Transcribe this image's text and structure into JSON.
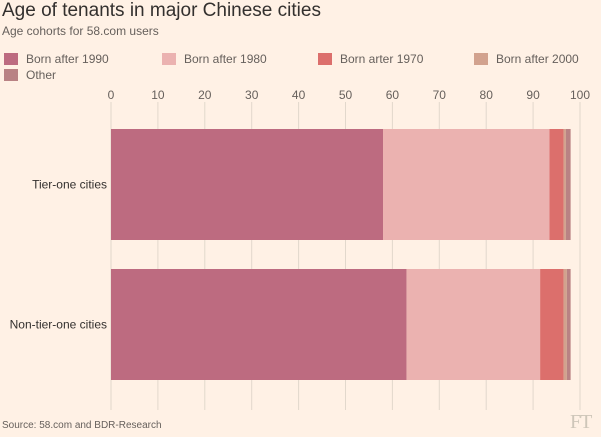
{
  "title": "Age of tenants in major Chinese cities",
  "subtitle": "Age cohorts for 58.com users",
  "source": "Source: 58.com and BDR-Research",
  "logo": "FT",
  "colors": {
    "background": "#fff1e5",
    "gridline": "#e2d8cc",
    "Born after 1990": "#bd6b80",
    "Born after 1980": "#ebb2b0",
    "Born arter 1970": "#dc6f6c",
    "Born after 2000": "#d2a28e",
    "Other": "#b98284"
  },
  "chart_data": {
    "type": "bar",
    "orientation": "horizontal",
    "stacked": true,
    "categories": [
      "Tier-one cities",
      "Non-tier-one cities"
    ],
    "series": [
      {
        "name": "Born after 1990",
        "values": [
          58,
          63
        ]
      },
      {
        "name": "Born after 1980",
        "values": [
          35.5,
          28.5
        ]
      },
      {
        "name": "Born arter 1970",
        "values": [
          3,
          5
        ]
      },
      {
        "name": "Born after 2000",
        "values": [
          0.5,
          0.7
        ]
      },
      {
        "name": "Other",
        "values": [
          1,
          0.8
        ]
      }
    ],
    "xlim": [
      0,
      100
    ],
    "xticks": [
      "0",
      "10",
      "20",
      "30",
      "40",
      "50",
      "60",
      "70",
      "80",
      "90",
      "100"
    ],
    "x_axis_position": "top",
    "grid": true,
    "legend_position": "top-left"
  }
}
